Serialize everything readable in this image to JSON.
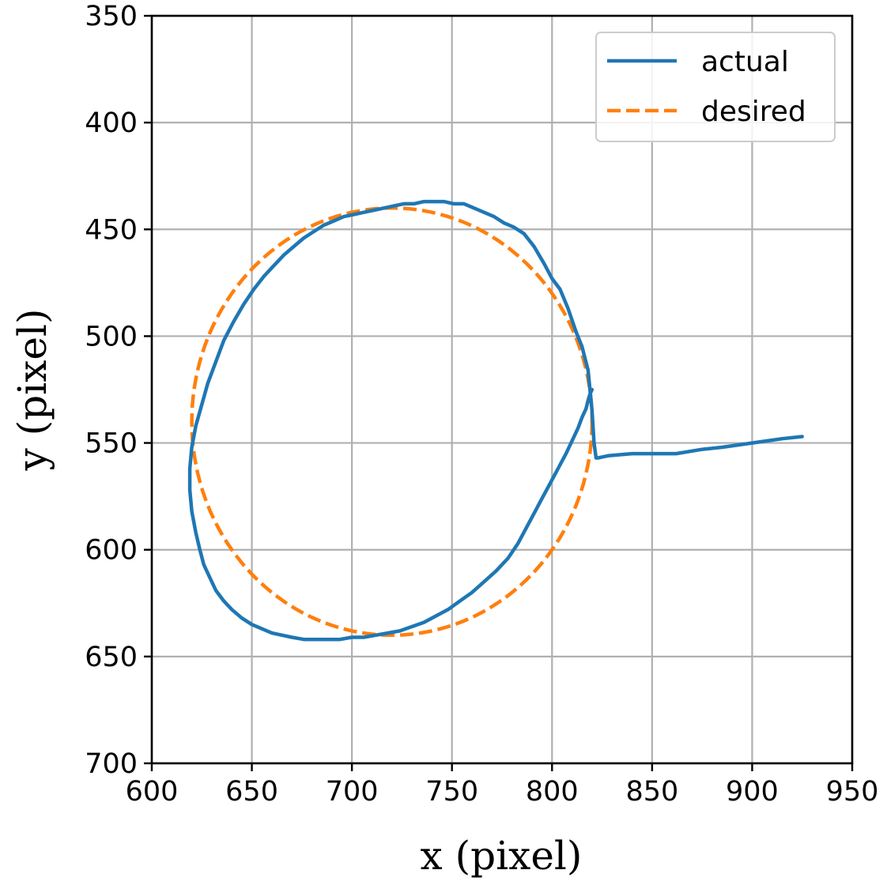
{
  "chart_data": {
    "type": "line",
    "xlabel": "x (pixel)",
    "ylabel": "y (pixel)",
    "xlim": [
      600,
      950
    ],
    "ylim": [
      700,
      350
    ],
    "y_inverted": true,
    "grid": true,
    "legend_position": "top-right",
    "xticks": [
      600,
      650,
      700,
      750,
      800,
      850,
      900,
      950
    ],
    "yticks": [
      350,
      400,
      450,
      500,
      550,
      600,
      650,
      700
    ],
    "series": [
      {
        "name": "actual",
        "style": "solid",
        "color": "#1f77b4",
        "x": [
          925,
          915,
          900,
          885,
          875,
          862,
          850,
          840,
          828,
          823,
          822,
          821,
          820,
          818,
          815,
          812,
          808,
          804,
          800,
          796,
          791,
          786,
          781,
          776,
          771,
          766,
          761,
          756,
          751,
          746,
          741,
          736,
          731,
          726,
          721,
          716,
          711,
          706,
          701,
          696,
          691,
          686,
          681,
          676,
          671,
          666,
          661,
          656,
          651,
          646,
          641,
          636,
          632,
          628,
          625,
          622,
          620,
          619,
          619,
          620,
          622,
          624,
          626,
          629,
          632,
          636,
          640,
          645,
          650,
          655,
          660,
          665,
          670,
          676,
          682,
          688,
          694,
          700,
          706,
          712,
          718,
          724,
          730,
          736,
          742,
          748,
          754,
          760,
          766,
          772,
          778,
          783,
          787,
          791,
          795,
          799,
          803,
          807,
          810,
          813,
          815,
          817,
          818,
          819,
          820
        ],
        "y": [
          547,
          548,
          550,
          552,
          553,
          555,
          555,
          555,
          556,
          557,
          557,
          550,
          535,
          516,
          505,
          498,
          487,
          478,
          473,
          466,
          458,
          452,
          449,
          447,
          444,
          442,
          440,
          438,
          438,
          437,
          437,
          437,
          438,
          438,
          439,
          440,
          441,
          442,
          443,
          444,
          446,
          448,
          451,
          454,
          458,
          462,
          467,
          472,
          478,
          485,
          493,
          502,
          512,
          522,
          532,
          542,
          552,
          562,
          572,
          582,
          592,
          600,
          607,
          613,
          619,
          624,
          628,
          632,
          635,
          637,
          639,
          640,
          641,
          642,
          642,
          642,
          642,
          641,
          641,
          640,
          639,
          638,
          636,
          634,
          631,
          628,
          624,
          620,
          615,
          610,
          604,
          597,
          590,
          583,
          576,
          569,
          562,
          555,
          549,
          543,
          538,
          534,
          530,
          527,
          525
        ]
      },
      {
        "name": "desired",
        "style": "dashed",
        "color": "#ff7f0e",
        "center": [
          720,
          540
        ],
        "radius": 100
      }
    ]
  }
}
